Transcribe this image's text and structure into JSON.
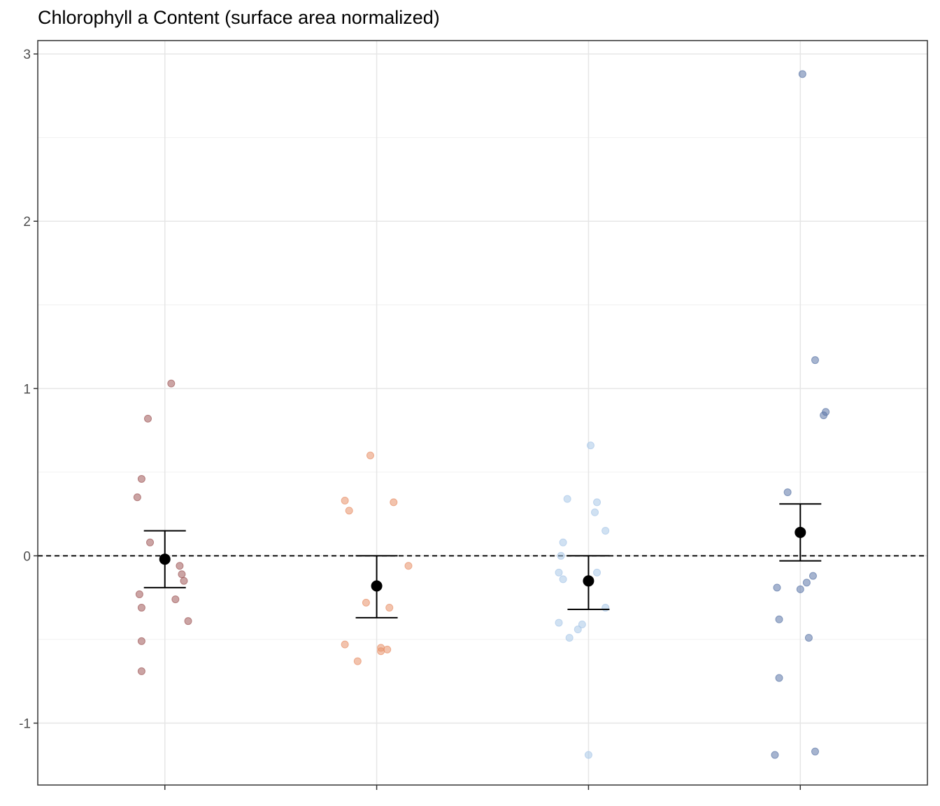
{
  "chart_data": {
    "type": "scatter",
    "title": "Chlorophyll a Content (surface area normalized)",
    "xlabel": "",
    "ylabel": "",
    "ylim": [
      -1.37,
      3.08
    ],
    "yticks": [
      -1,
      0,
      1,
      2,
      3
    ],
    "ytick_labels": [
      "-1",
      "0",
      "1",
      "2",
      "3"
    ],
    "reference_line": {
      "y": 0,
      "style": "dashed"
    },
    "grid": true,
    "legend": "none",
    "groups": [
      {
        "color": "#a05a5a",
        "points": [
          {
            "jitter": 0.03,
            "y": 1.03
          },
          {
            "jitter": -0.08,
            "y": 0.82
          },
          {
            "jitter": -0.11,
            "y": 0.46
          },
          {
            "jitter": -0.13,
            "y": 0.35
          },
          {
            "jitter": -0.07,
            "y": 0.08
          },
          {
            "jitter": 0.07,
            "y": -0.06
          },
          {
            "jitter": 0.08,
            "y": -0.11
          },
          {
            "jitter": 0.09,
            "y": -0.15
          },
          {
            "jitter": -0.12,
            "y": -0.23
          },
          {
            "jitter": 0.05,
            "y": -0.26
          },
          {
            "jitter": -0.11,
            "y": -0.31
          },
          {
            "jitter": 0.11,
            "y": -0.39
          },
          {
            "jitter": -0.11,
            "y": -0.51
          },
          {
            "jitter": -0.11,
            "y": -0.69
          }
        ],
        "mean": -0.02,
        "lower": -0.19,
        "upper": 0.15
      },
      {
        "color": "#e8916a",
        "points": [
          {
            "jitter": -0.03,
            "y": 0.6
          },
          {
            "jitter": -0.15,
            "y": 0.33
          },
          {
            "jitter": 0.08,
            "y": 0.32
          },
          {
            "jitter": -0.13,
            "y": 0.27
          },
          {
            "jitter": 0.15,
            "y": -0.06
          },
          {
            "jitter": -0.05,
            "y": -0.28
          },
          {
            "jitter": 0.06,
            "y": -0.31
          },
          {
            "jitter": -0.15,
            "y": -0.53
          },
          {
            "jitter": 0.02,
            "y": -0.55
          },
          {
            "jitter": 0.05,
            "y": -0.56
          },
          {
            "jitter": 0.02,
            "y": -0.57
          },
          {
            "jitter": -0.09,
            "y": -0.63
          }
        ],
        "mean": -0.18,
        "lower": -0.37,
        "upper": 0.0
      },
      {
        "color": "#a9c8e8",
        "points": [
          {
            "jitter": 0.01,
            "y": 0.66
          },
          {
            "jitter": -0.1,
            "y": 0.34
          },
          {
            "jitter": 0.04,
            "y": 0.32
          },
          {
            "jitter": 0.03,
            "y": 0.26
          },
          {
            "jitter": 0.08,
            "y": 0.15
          },
          {
            "jitter": -0.12,
            "y": 0.08
          },
          {
            "jitter": -0.13,
            "y": 0.0
          },
          {
            "jitter": 0.04,
            "y": -0.1
          },
          {
            "jitter": -0.14,
            "y": -0.1
          },
          {
            "jitter": -0.12,
            "y": -0.14
          },
          {
            "jitter": 0.08,
            "y": -0.31
          },
          {
            "jitter": -0.14,
            "y": -0.4
          },
          {
            "jitter": -0.03,
            "y": -0.41
          },
          {
            "jitter": -0.05,
            "y": -0.44
          },
          {
            "jitter": -0.09,
            "y": -0.49
          },
          {
            "jitter": 0.0,
            "y": -1.19
          }
        ],
        "mean": -0.15,
        "lower": -0.32,
        "upper": 0.0
      },
      {
        "color": "#5c77a8",
        "points": [
          {
            "jitter": 0.01,
            "y": 2.88
          },
          {
            "jitter": 0.07,
            "y": 1.17
          },
          {
            "jitter": 0.12,
            "y": 0.86
          },
          {
            "jitter": 0.11,
            "y": 0.84
          },
          {
            "jitter": -0.06,
            "y": 0.38
          },
          {
            "jitter": 0.06,
            "y": -0.12
          },
          {
            "jitter": 0.03,
            "y": -0.16
          },
          {
            "jitter": -0.11,
            "y": -0.19
          },
          {
            "jitter": 0.0,
            "y": -0.2
          },
          {
            "jitter": -0.1,
            "y": -0.38
          },
          {
            "jitter": 0.04,
            "y": -0.49
          },
          {
            "jitter": -0.1,
            "y": -0.73
          },
          {
            "jitter": 0.07,
            "y": -1.17
          },
          {
            "jitter": -0.12,
            "y": -1.19
          }
        ],
        "mean": 0.14,
        "lower": -0.03,
        "upper": 0.31
      }
    ]
  }
}
